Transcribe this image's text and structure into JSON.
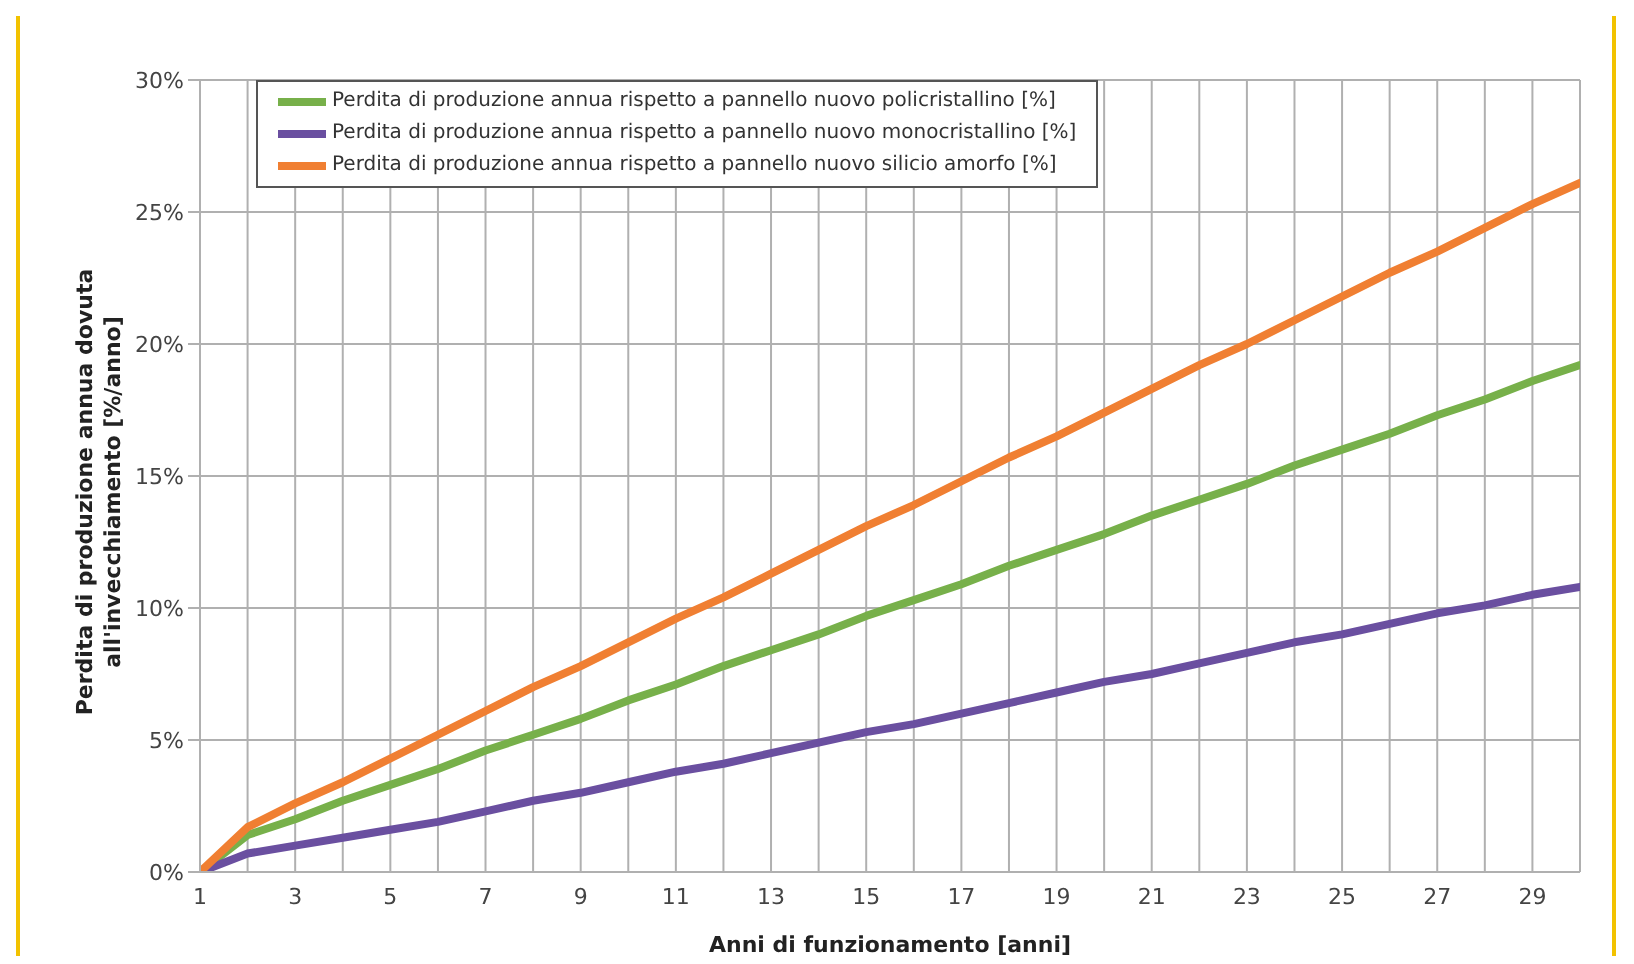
{
  "chart_data": {
    "type": "line",
    "xlabel": "Anni di funzionamento [anni]",
    "ylabel": "Perdita di produzione annua dovuta all'invecchiamento [%/anno]",
    "x": [
      1,
      2,
      3,
      4,
      5,
      6,
      7,
      8,
      9,
      10,
      11,
      12,
      13,
      14,
      15,
      16,
      17,
      18,
      19,
      20,
      21,
      22,
      23,
      24,
      25,
      26,
      27,
      28,
      29,
      30
    ],
    "series": [
      {
        "name": "Perdita di produzione annua rispetto a pannello nuovo policristallino [%]",
        "color": "#77b04a",
        "values": [
          0,
          1.4,
          2.0,
          2.7,
          3.3,
          3.9,
          4.6,
          5.2,
          5.8,
          6.5,
          7.1,
          7.8,
          8.4,
          9.0,
          9.7,
          10.3,
          10.9,
          11.6,
          12.2,
          12.8,
          13.5,
          14.1,
          14.7,
          15.4,
          16.0,
          16.6,
          17.3,
          17.9,
          18.6,
          19.2
        ]
      },
      {
        "name": "Perdita di produzione annua rispetto a pannello nuovo monocristallino [%]",
        "color": "#6a4fa0",
        "values": [
          0,
          0.7,
          1.0,
          1.3,
          1.6,
          1.9,
          2.3,
          2.7,
          3.0,
          3.4,
          3.8,
          4.1,
          4.5,
          4.9,
          5.3,
          5.6,
          6.0,
          6.4,
          6.8,
          7.2,
          7.5,
          7.9,
          8.3,
          8.7,
          9.0,
          9.4,
          9.8,
          10.1,
          10.5,
          10.8
        ]
      },
      {
        "name": "Perdita di produzione annua rispetto a pannello nuovo silicio amorfo [%]",
        "color": "#f07f32",
        "values": [
          0,
          1.7,
          2.6,
          3.4,
          4.3,
          5.2,
          6.1,
          7.0,
          7.8,
          8.7,
          9.6,
          10.4,
          11.3,
          12.2,
          13.1,
          13.9,
          14.8,
          15.7,
          16.5,
          17.4,
          18.3,
          19.2,
          20.0,
          20.9,
          21.8,
          22.7,
          23.5,
          24.4,
          25.3,
          26.1
        ]
      }
    ],
    "xlim": [
      1,
      30
    ],
    "xticks": [
      1,
      {
        "value": 2,
        "label": null
      },
      3,
      {
        "value": 4,
        "label": null
      },
      5,
      {
        "value": 6,
        "label": null
      },
      7,
      {
        "value": 8,
        "label": null
      },
      9,
      {
        "value": 10,
        "label": null
      },
      11,
      {
        "value": 12,
        "label": null
      },
      13,
      {
        "value": 14,
        "label": null
      },
      15,
      {
        "value": 16,
        "label": null
      },
      17,
      {
        "value": 18,
        "label": null
      },
      19,
      {
        "value": 20,
        "label": null
      },
      21,
      {
        "value": 22,
        "label": null
      },
      23,
      {
        "value": 24,
        "label": null
      },
      25,
      {
        "value": 26,
        "label": null
      },
      27,
      {
        "value": 28,
        "label": null
      },
      29,
      {
        "value": 30,
        "label": null
      }
    ],
    "ylim": [
      0,
      30
    ],
    "yticks": [
      {
        "value": 0,
        "label": "0%"
      },
      {
        "value": 5,
        "label": "5%"
      },
      {
        "value": 10,
        "label": "10%"
      },
      {
        "value": 15,
        "label": "15%"
      },
      {
        "value": 20,
        "label": "20%"
      },
      {
        "value": 25,
        "label": "25%"
      },
      {
        "value": 30,
        "label": "30%"
      }
    ],
    "grid": true,
    "legend": "top left",
    "marker": "none",
    "line_style": "solid"
  }
}
